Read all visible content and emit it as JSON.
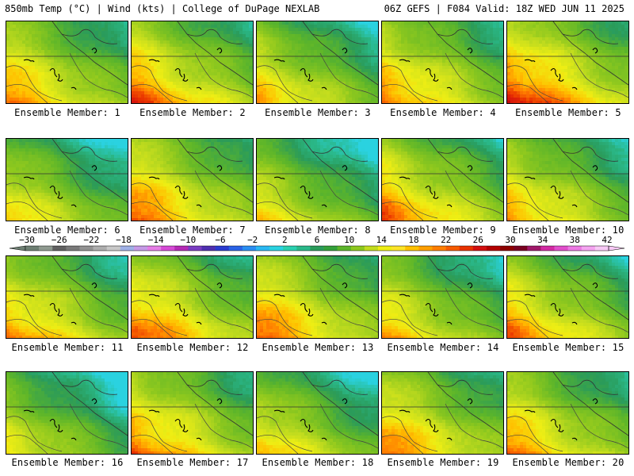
{
  "header": {
    "left": "850mb Temp (°C) | Wind (kts) | College of DuPage NEXLAB",
    "right": "06Z GEFS | F084 Valid: 18Z WED JUN 11 2025"
  },
  "members": [
    {
      "label": "Ensemble Member: 1",
      "warmth": 0.75
    },
    {
      "label": "Ensemble Member: 2",
      "warmth": 0.85
    },
    {
      "label": "Ensemble Member: 3",
      "warmth": 0.6
    },
    {
      "label": "Ensemble Member: 4",
      "warmth": 0.8
    },
    {
      "label": "Ensemble Member: 5",
      "warmth": 1.0
    },
    {
      "label": "Ensemble Member: 6",
      "warmth": 0.5
    },
    {
      "label": "Ensemble Member: 7",
      "warmth": 0.85
    },
    {
      "label": "Ensemble Member: 8",
      "warmth": 0.45
    },
    {
      "label": "Ensemble Member: 9",
      "warmth": 0.8
    },
    {
      "label": "Ensemble Member: 10",
      "warmth": 0.7
    },
    {
      "label": "Ensemble Member: 11",
      "warmth": 0.75
    },
    {
      "label": "Ensemble Member: 12",
      "warmth": 0.85
    },
    {
      "label": "Ensemble Member: 13",
      "warmth": 0.85
    },
    {
      "label": "Ensemble Member: 14",
      "warmth": 0.6
    },
    {
      "label": "Ensemble Member: 15",
      "warmth": 0.75
    },
    {
      "label": "Ensemble Member: 16",
      "warmth": 0.4
    },
    {
      "label": "Ensemble Member: 17",
      "warmth": 0.85
    },
    {
      "label": "Ensemble Member: 18",
      "warmth": 0.55
    },
    {
      "label": "Ensemble Member: 19",
      "warmth": 0.8
    },
    {
      "label": "Ensemble Member: 20",
      "warmth": 0.75
    }
  ],
  "colorbar": {
    "ticks": [
      "−30",
      "−26",
      "−22",
      "−18",
      "−14",
      "−10",
      "−6",
      "−2",
      "2",
      "6",
      "10",
      "14",
      "18",
      "22",
      "26",
      "30",
      "34",
      "38",
      "42"
    ],
    "colors": [
      "#6e7f73",
      "#8f9a90",
      "#616161",
      "#7a7a7a",
      "#939393",
      "#adadad",
      "#c8c8c8",
      "#9fb0e6",
      "#c59ae6",
      "#e57de6",
      "#d64ad6",
      "#b52ab5",
      "#7a3cc2",
      "#4f2fb0",
      "#2a3bd0",
      "#2a63e6",
      "#2a8ef2",
      "#2ab8f2",
      "#2ad2e0",
      "#2ad0b0",
      "#2ab889",
      "#2a9b5a",
      "#33a03a",
      "#5cb52a",
      "#8ec81e",
      "#c2dc1e",
      "#eeee14",
      "#fde428",
      "#ffc100",
      "#ff9f00",
      "#ff7e00",
      "#f65a00",
      "#e83200",
      "#d30f0f",
      "#b30000",
      "#8d0000",
      "#7a0020",
      "#a0186a",
      "#d22aa3",
      "#e04ecb",
      "#ec79e3",
      "#f4a3f0",
      "#f7c9f5"
    ]
  }
}
